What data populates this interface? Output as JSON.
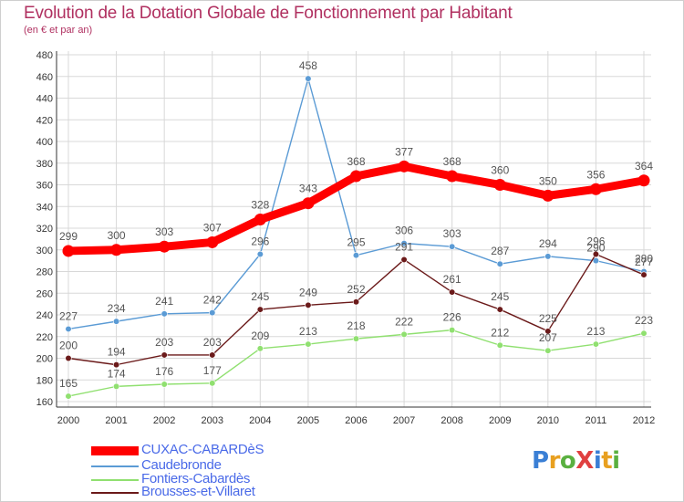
{
  "title": "Evolution de la Dotation Globale de Fonctionnement par Habitant",
  "subtitle": "(en € et par an)",
  "logo_text": "ProXiti",
  "colors": {
    "title": "#b03060",
    "legend_text": "#4a6ae8",
    "grid": "#d8d8d8",
    "axis": "#333333"
  },
  "chart_data": {
    "type": "line",
    "x": [
      "2000",
      "2001",
      "2002",
      "2003",
      "2004",
      "2005",
      "2006",
      "2007",
      "2008",
      "2009",
      "2010",
      "2011",
      "2012"
    ],
    "ylim": [
      160,
      480
    ],
    "yticks": [
      160,
      180,
      200,
      220,
      240,
      260,
      280,
      300,
      320,
      340,
      360,
      380,
      400,
      420,
      440,
      460,
      480
    ],
    "grid": true,
    "legend_position": "bottom-left",
    "series": [
      {
        "name": "CUXAC-CABARDèS",
        "color": "#ff0000",
        "values": [
          299,
          300,
          303,
          307,
          328,
          343,
          368,
          377,
          368,
          360,
          350,
          356,
          364
        ]
      },
      {
        "name": "Caudebronde",
        "color": "#5b9bd5",
        "values": [
          227,
          234,
          241,
          242,
          296,
          458,
          295,
          306,
          303,
          287,
          294,
          290,
          280
        ]
      },
      {
        "name": "Fontiers-Cabardès",
        "color": "#90e070",
        "values": [
          165,
          174,
          176,
          177,
          209,
          213,
          218,
          222,
          226,
          212,
          207,
          213,
          223
        ]
      },
      {
        "name": "Brousses-et-Villaret",
        "color": "#6b1a1a",
        "values": [
          200,
          194,
          203,
          203,
          245,
          249,
          252,
          291,
          261,
          245,
          225,
          296,
          277
        ]
      }
    ]
  }
}
